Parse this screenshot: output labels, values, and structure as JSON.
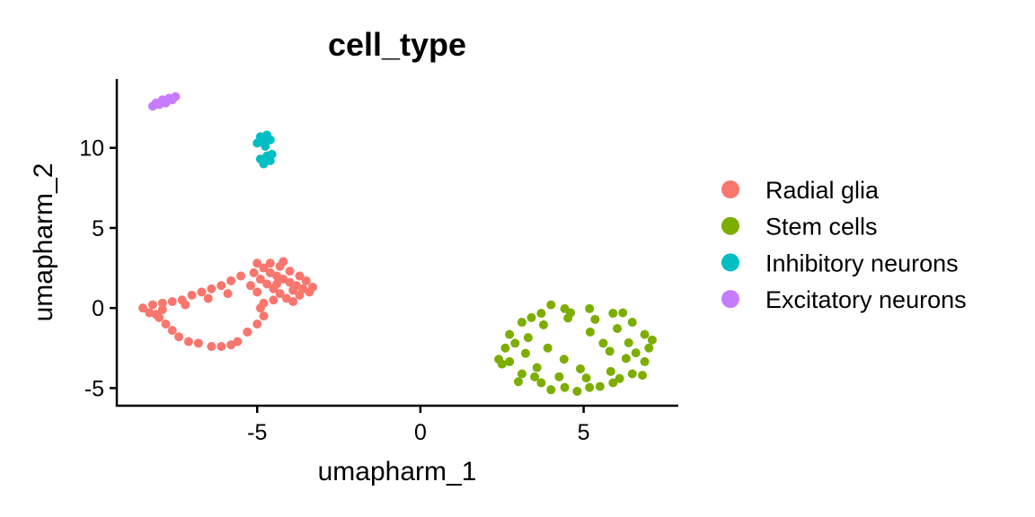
{
  "chart_data": {
    "type": "scatter",
    "title": "cell_type",
    "xlabel": "umapharm_1",
    "ylabel": "umapharm_2",
    "xlim": [
      -9.3,
      7.9
    ],
    "ylim": [
      -6.1,
      14.3
    ],
    "xticks": [
      {
        "value": -5,
        "label": "-5"
      },
      {
        "value": 0,
        "label": "0"
      },
      {
        "value": 5,
        "label": "5"
      }
    ],
    "yticks": [
      {
        "value": -5,
        "label": "-5"
      },
      {
        "value": 0,
        "label": "0"
      },
      {
        "value": 5,
        "label": "5"
      },
      {
        "value": 10,
        "label": "10"
      }
    ],
    "grid": false,
    "legend_position": "right",
    "series": [
      {
        "name": "Radial glia",
        "color": "#F8766D",
        "points": [
          [
            -5,
            2.8
          ],
          [
            -4.8,
            2.5
          ],
          [
            -4.6,
            2.2
          ],
          [
            -4.4,
            2
          ],
          [
            -4.2,
            1.8
          ],
          [
            -4,
            1.6
          ],
          [
            -3.8,
            1.4
          ],
          [
            -3.6,
            1.2
          ],
          [
            -3.4,
            1
          ],
          [
            -5.1,
            2.2
          ],
          [
            -4.9,
            1.8
          ],
          [
            -4.7,
            1.5
          ],
          [
            -4.5,
            1.2
          ],
          [
            -4.3,
            0.9
          ],
          [
            -4.1,
            0.6
          ],
          [
            -3.9,
            0.4
          ],
          [
            -4.8,
            0.3
          ],
          [
            -4.5,
            0.5
          ],
          [
            -3.7,
            0.8
          ],
          [
            -4.6,
            2.8
          ],
          [
            -4.3,
            2.6
          ],
          [
            -4.0,
            2.3
          ],
          [
            -3.7,
            2.0
          ],
          [
            -3.5,
            1.7
          ],
          [
            -5.2,
            1.4
          ],
          [
            -5.0,
            1.0
          ],
          [
            -4.4,
            1.5
          ],
          [
            -3.9,
            1.1
          ],
          [
            -4.2,
            2.9
          ],
          [
            -3.3,
            1.3
          ],
          [
            -8.5,
            0
          ],
          [
            -8.2,
            0.2
          ],
          [
            -7.9,
            0.3
          ],
          [
            -7.6,
            0.4
          ],
          [
            -7.3,
            0.5
          ],
          [
            -7,
            0.8
          ],
          [
            -6.7,
            1
          ],
          [
            -6.4,
            1.2
          ],
          [
            -6.1,
            1.4
          ],
          [
            -5.8,
            1.7
          ],
          [
            -5.5,
            2.0
          ],
          [
            -5.9,
            0.9
          ],
          [
            -6.5,
            0.6
          ],
          [
            -7.2,
            0.2
          ],
          [
            -8.3,
            -0.3
          ],
          [
            -8.0,
            -0.6
          ],
          [
            -7.8,
            -1
          ],
          [
            -7.6,
            -1.4
          ],
          [
            -7.4,
            -1.8
          ],
          [
            -7.1,
            -2.1
          ],
          [
            -6.8,
            -2.2
          ],
          [
            -6.4,
            -2.4
          ],
          [
            -6.1,
            -2.4
          ],
          [
            -5.8,
            -2.3
          ],
          [
            -5.6,
            -2.1
          ],
          [
            -5.3,
            -1.5
          ],
          [
            -5.0,
            -1.0
          ],
          [
            -4.8,
            -0.5
          ],
          [
            -4.9,
            0.0
          ],
          [
            -7.9,
            -0.1
          ],
          [
            -8.1,
            -0.4
          ]
        ]
      },
      {
        "name": "Stem cells",
        "color": "#7CAE00",
        "points": [
          [
            7.0,
            -2.5
          ],
          [
            6.87,
            -1.65
          ],
          [
            6.49,
            -0.89
          ],
          [
            5.9,
            -0.33
          ],
          [
            5.18,
            -0.04
          ],
          [
            4.42,
            -0.04
          ],
          [
            3.7,
            -0.33
          ],
          [
            3.11,
            -0.89
          ],
          [
            2.73,
            -1.65
          ],
          [
            2.6,
            -2.5
          ],
          [
            2.73,
            -3.35
          ],
          [
            3.11,
            -4.11
          ],
          [
            3.7,
            -4.67
          ],
          [
            4.42,
            -4.96
          ],
          [
            5.18,
            -4.96
          ],
          [
            5.9,
            -4.67
          ],
          [
            6.49,
            -4.11
          ],
          [
            6.87,
            -3.35
          ],
          [
            6.38,
            -2.17
          ],
          [
            6.03,
            -1.28
          ],
          [
            5.35,
            -0.71
          ],
          [
            4.52,
            -0.63
          ],
          [
            3.77,
            -1.05
          ],
          [
            3.3,
            -1.85
          ],
          [
            3.22,
            -2.83
          ],
          [
            3.57,
            -3.72
          ],
          [
            4.25,
            -4.29
          ],
          [
            5.08,
            -4.37
          ],
          [
            5.83,
            -3.96
          ],
          [
            6.3,
            -3.15
          ],
          [
            2.5,
            -3.5
          ],
          [
            2.4,
            -3.2
          ],
          [
            3.0,
            -4.6
          ],
          [
            4.0,
            -5.1
          ],
          [
            4.8,
            -5.2
          ],
          [
            5.5,
            -4.9
          ],
          [
            6.8,
            -4.2
          ],
          [
            7.1,
            -2.0
          ],
          [
            6.2,
            -0.3
          ],
          [
            4.0,
            0.2
          ],
          [
            3.4,
            -0.6
          ],
          [
            4.4,
            -3.2
          ],
          [
            5.6,
            -2.2
          ],
          [
            5.2,
            -1.5
          ],
          [
            4.9,
            -3.8
          ],
          [
            3.9,
            -2.5
          ],
          [
            5.8,
            -2.7
          ],
          [
            2.9,
            -2.2
          ],
          [
            6.6,
            -2.8
          ],
          [
            4.6,
            -0.3
          ],
          [
            3.5,
            -4.3
          ],
          [
            6.1,
            -4.4
          ]
        ]
      },
      {
        "name": "Inhibitory neurons",
        "color": "#00BFC4",
        "points": [
          [
            -4.9,
            10.7
          ],
          [
            -4.7,
            10.8
          ],
          [
            -4.6,
            10.5
          ],
          [
            -5.0,
            10.3
          ],
          [
            -4.8,
            10.4
          ],
          [
            -4.7,
            9.5
          ],
          [
            -4.9,
            9.3
          ],
          [
            -4.6,
            9.2
          ],
          [
            -4.8,
            9.0
          ],
          [
            -4.55,
            9.6
          ],
          [
            -4.75,
            10.1
          ]
        ]
      },
      {
        "name": "Excitatory neurons",
        "color": "#C77CFF",
        "points": [
          [
            -8.2,
            12.6
          ],
          [
            -8.0,
            12.7
          ],
          [
            -7.8,
            12.8
          ],
          [
            -7.6,
            13.0
          ],
          [
            -7.5,
            13.2
          ],
          [
            -7.9,
            13.0
          ],
          [
            -8.1,
            12.8
          ],
          [
            -7.7,
            13.1
          ]
        ]
      }
    ]
  }
}
